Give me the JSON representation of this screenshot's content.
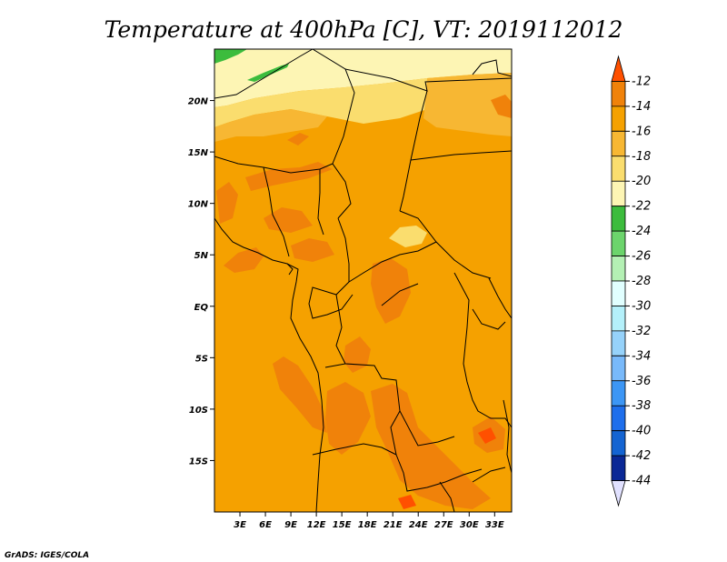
{
  "title": "Temperature at 400hPa [C], VT: 2019112012",
  "credit": "GrADS: IGES/COLA",
  "map": {
    "lon_range": [
      0,
      35
    ],
    "lat_range": [
      -20,
      25
    ],
    "background_color": "#f5a100",
    "lat_ticks": [
      {
        "value": 20,
        "label": "20N"
      },
      {
        "value": 15,
        "label": "15N"
      },
      {
        "value": 10,
        "label": "10N"
      },
      {
        "value": 5,
        "label": "5N"
      },
      {
        "value": 0,
        "label": "EQ"
      },
      {
        "value": -5,
        "label": "5S"
      },
      {
        "value": -10,
        "label": "10S"
      },
      {
        "value": -15,
        "label": "15S"
      }
    ],
    "lon_ticks": [
      {
        "value": 3,
        "label": "3E"
      },
      {
        "value": 6,
        "label": "6E"
      },
      {
        "value": 9,
        "label": "9E"
      },
      {
        "value": 12,
        "label": "12E"
      },
      {
        "value": 15,
        "label": "15E"
      },
      {
        "value": 18,
        "label": "18E"
      },
      {
        "value": 21,
        "label": "21E"
      },
      {
        "value": 24,
        "label": "24E"
      },
      {
        "value": 27,
        "label": "27E"
      },
      {
        "value": 30,
        "label": "30E"
      },
      {
        "value": 33,
        "label": "33E"
      }
    ]
  },
  "colorbar": {
    "levels": [
      "-12",
      "-14",
      "-16",
      "-18",
      "-20",
      "-22",
      "-24",
      "-26",
      "-28",
      "-30",
      "-32",
      "-34",
      "-36",
      "-38",
      "-40",
      "-42",
      "-44"
    ],
    "colors": [
      "#ff5000",
      "#f0820a",
      "#f5a100",
      "#f7b733",
      "#fadd6e",
      "#fdf5b4",
      "#3cbc3d",
      "#6cd46c",
      "#b4f0b4",
      "#e1ffff",
      "#b4f0fa",
      "#96d2fa",
      "#78b9fa",
      "#3c96f5",
      "#1e6eeb",
      "#1464d2",
      "#0a2896",
      "#e1e1ff"
    ]
  },
  "region_colors": {
    "c12": "#ff5000",
    "c14": "#f0820a",
    "c16": "#f5a100",
    "c18": "#f7b733",
    "c20": "#fadd6e",
    "c22": "#fdf5b4",
    "c24": "#3cbc3d",
    "c26": "#6cd46c"
  }
}
